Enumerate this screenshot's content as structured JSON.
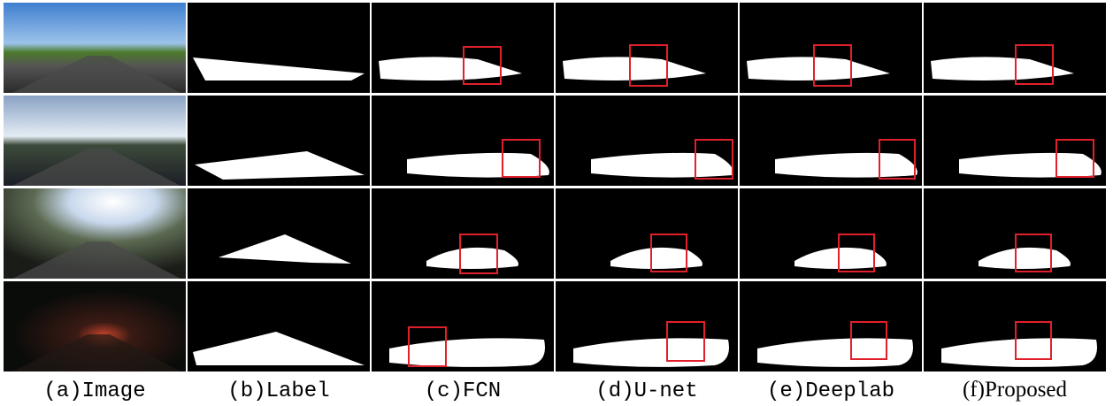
{
  "captions": [
    "(a)Image",
    "(b)Label",
    "(c)FCN",
    "(d)U-net",
    "(e)Deeplab",
    "(f)Proposed"
  ]
}
